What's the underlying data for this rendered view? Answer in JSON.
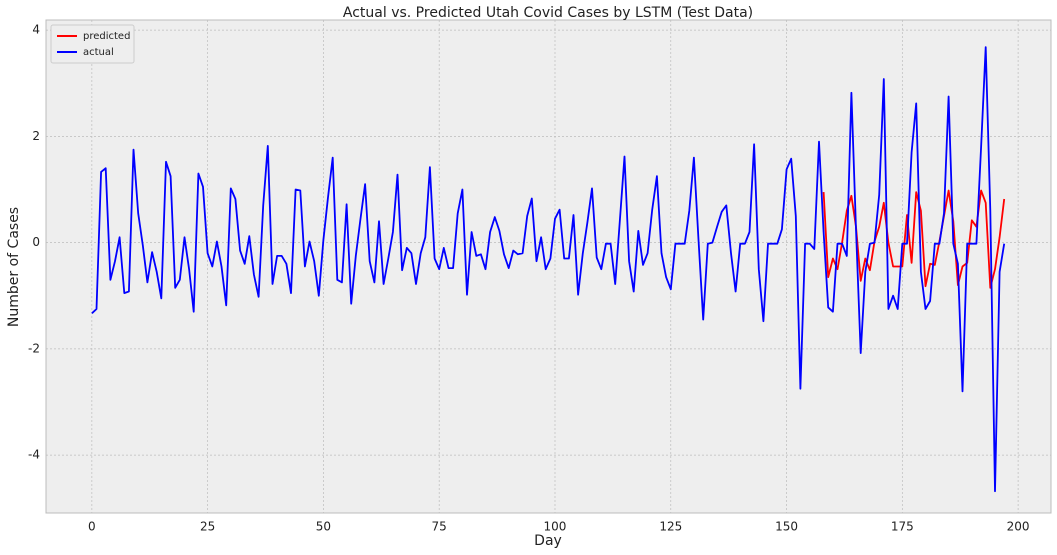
{
  "chart_data": {
    "type": "line",
    "title": "Actual vs. Predicted Utah Covid Cases by LSTM (Test Data)",
    "x_label": "Day",
    "y_label": "Number of Cases",
    "x": [
      0,
      1,
      2,
      3,
      4,
      5,
      6,
      7,
      8,
      9,
      10,
      11,
      12,
      13,
      14,
      15,
      16,
      17,
      18,
      19,
      20,
      21,
      22,
      23,
      24,
      25,
      26,
      27,
      28,
      29,
      30,
      31,
      32,
      33,
      34,
      35,
      36,
      37,
      38,
      39,
      40,
      41,
      42,
      43,
      44,
      45,
      46,
      47,
      48,
      49,
      50,
      51,
      52,
      53,
      54,
      55,
      56,
      57,
      58,
      59,
      60,
      61,
      62,
      63,
      64,
      65,
      66,
      67,
      68,
      69,
      70,
      71,
      72,
      73,
      74,
      75,
      76,
      77,
      78,
      79,
      80,
      81,
      82,
      83,
      84,
      85,
      86,
      87,
      88,
      89,
      90,
      91,
      92,
      93,
      94,
      95,
      96,
      97,
      98,
      99,
      100,
      101,
      102,
      103,
      104,
      105,
      106,
      107,
      108,
      109,
      110,
      111,
      112,
      113,
      114,
      115,
      116,
      117,
      118,
      119,
      120,
      121,
      122,
      123,
      124,
      125,
      126,
      127,
      128,
      129,
      130,
      131,
      132,
      133,
      134,
      135,
      136,
      137,
      138,
      139,
      140,
      141,
      142,
      143,
      144,
      145,
      146,
      147,
      148,
      149,
      150,
      151,
      152,
      153,
      154,
      155,
      156,
      157,
      158,
      159,
      160,
      161,
      162,
      163,
      164,
      165,
      166,
      167,
      168,
      169,
      170,
      171,
      172,
      173,
      174,
      175,
      176,
      177,
      178,
      179,
      180,
      181,
      182,
      183,
      184,
      185,
      186,
      187,
      188,
      189,
      190,
      191,
      192,
      193,
      194,
      195,
      196,
      197
    ],
    "series": [
      {
        "name": "predicted",
        "color": "#ff0000",
        "values": [
          null,
          null,
          null,
          null,
          null,
          null,
          null,
          null,
          null,
          null,
          null,
          null,
          null,
          null,
          null,
          null,
          null,
          null,
          null,
          null,
          null,
          null,
          null,
          null,
          null,
          null,
          null,
          null,
          null,
          null,
          null,
          null,
          null,
          null,
          null,
          null,
          null,
          null,
          null,
          null,
          null,
          null,
          null,
          null,
          null,
          null,
          null,
          null,
          null,
          null,
          null,
          null,
          null,
          null,
          null,
          null,
          null,
          null,
          null,
          null,
          null,
          null,
          null,
          null,
          null,
          null,
          null,
          null,
          null,
          null,
          null,
          null,
          null,
          null,
          null,
          null,
          null,
          null,
          null,
          null,
          null,
          null,
          null,
          null,
          null,
          null,
          null,
          null,
          null,
          null,
          null,
          null,
          null,
          null,
          null,
          null,
          null,
          null,
          null,
          null,
          null,
          null,
          null,
          null,
          null,
          null,
          null,
          null,
          null,
          null,
          null,
          null,
          null,
          null,
          null,
          null,
          null,
          null,
          null,
          null,
          null,
          null,
          null,
          null,
          null,
          null,
          null,
          null,
          null,
          null,
          null,
          null,
          null,
          null,
          null,
          null,
          null,
          null,
          null,
          null,
          null,
          null,
          null,
          null,
          null,
          null,
          null,
          null,
          null,
          null,
          null,
          null,
          null,
          null,
          null,
          null,
          null,
          null,
          0.95,
          -0.65,
          -0.3,
          -0.5,
          0.0,
          0.6,
          0.88,
          0.3,
          -0.72,
          -0.3,
          -0.52,
          0.02,
          0.3,
          0.75,
          0.0,
          -0.45,
          -0.45,
          -0.45,
          0.52,
          -0.38,
          0.95,
          0.6,
          -0.82,
          -0.4,
          -0.42,
          0.02,
          0.5,
          0.98,
          0.4,
          -0.8,
          -0.45,
          -0.38,
          0.42,
          0.3,
          0.98,
          0.75,
          -0.85,
          -0.5,
          0.1,
          0.82
        ]
      },
      {
        "name": "actual",
        "color": "#0000ff",
        "values": [
          -1.33,
          -1.25,
          1.33,
          1.4,
          -0.7,
          -0.35,
          0.1,
          -0.95,
          -0.92,
          1.75,
          0.55,
          -0.05,
          -0.75,
          -0.18,
          -0.55,
          -1.05,
          1.52,
          1.25,
          -0.85,
          -0.7,
          0.1,
          -0.5,
          -1.3,
          1.3,
          1.05,
          -0.2,
          -0.45,
          0.02,
          -0.45,
          -1.18,
          1.02,
          0.82,
          -0.15,
          -0.4,
          0.12,
          -0.6,
          -1.02,
          0.7,
          1.82,
          -0.78,
          -0.25,
          -0.25,
          -0.4,
          -0.95,
          1.0,
          0.98,
          -0.45,
          0.02,
          -0.35,
          -1.0,
          0.05,
          0.85,
          1.6,
          -0.7,
          -0.75,
          0.72,
          -1.15,
          -0.25,
          0.45,
          1.1,
          -0.35,
          -0.75,
          0.4,
          -0.78,
          -0.3,
          0.2,
          1.28,
          -0.52,
          -0.1,
          -0.2,
          -0.78,
          -0.2,
          0.1,
          1.42,
          -0.3,
          -0.5,
          -0.1,
          -0.48,
          -0.48,
          0.55,
          1.0,
          -0.98,
          0.2,
          -0.25,
          -0.22,
          -0.5,
          0.2,
          0.48,
          0.22,
          -0.22,
          -0.48,
          -0.15,
          -0.22,
          -0.2,
          0.5,
          0.83,
          -0.35,
          0.1,
          -0.5,
          -0.3,
          0.45,
          0.62,
          -0.3,
          -0.3,
          0.52,
          -0.98,
          -0.2,
          0.38,
          1.02,
          -0.28,
          -0.5,
          -0.02,
          -0.02,
          -0.78,
          0.4,
          1.62,
          -0.35,
          -0.92,
          0.22,
          -0.42,
          -0.2,
          0.62,
          1.25,
          -0.2,
          -0.65,
          -0.88,
          -0.02,
          -0.02,
          -0.02,
          0.6,
          1.6,
          0.02,
          -1.45,
          -0.02,
          0.0,
          0.3,
          0.58,
          0.7,
          -0.2,
          -0.92,
          -0.02,
          -0.02,
          0.2,
          1.85,
          -0.5,
          -1.48,
          -0.02,
          -0.02,
          -0.02,
          0.25,
          1.38,
          1.58,
          0.5,
          -2.75,
          -0.02,
          -0.02,
          -0.12,
          1.9,
          0.2,
          -1.22,
          -1.3,
          -0.02,
          -0.02,
          -0.25,
          2.82,
          0.25,
          -2.08,
          -0.55,
          -0.02,
          0.0,
          0.9,
          3.08,
          -1.25,
          -1.0,
          -1.25,
          -0.02,
          -0.02,
          1.7,
          2.62,
          -0.55,
          -1.25,
          -1.1,
          -0.02,
          -0.02,
          0.55,
          2.75,
          -0.02,
          -0.4,
          -2.8,
          -0.02,
          -0.02,
          -0.02,
          1.8,
          3.68,
          0.6,
          -4.68,
          -0.55,
          -0.02
        ]
      }
    ],
    "xlim": [
      -9.9,
      207.1
    ],
    "ylim": [
      -5.09,
      4.19
    ],
    "xticks": [
      0,
      25,
      50,
      75,
      100,
      125,
      150,
      175,
      200
    ],
    "yticks": [
      -4,
      -2,
      0,
      2,
      4
    ],
    "grid": true,
    "legend": "upper left"
  }
}
